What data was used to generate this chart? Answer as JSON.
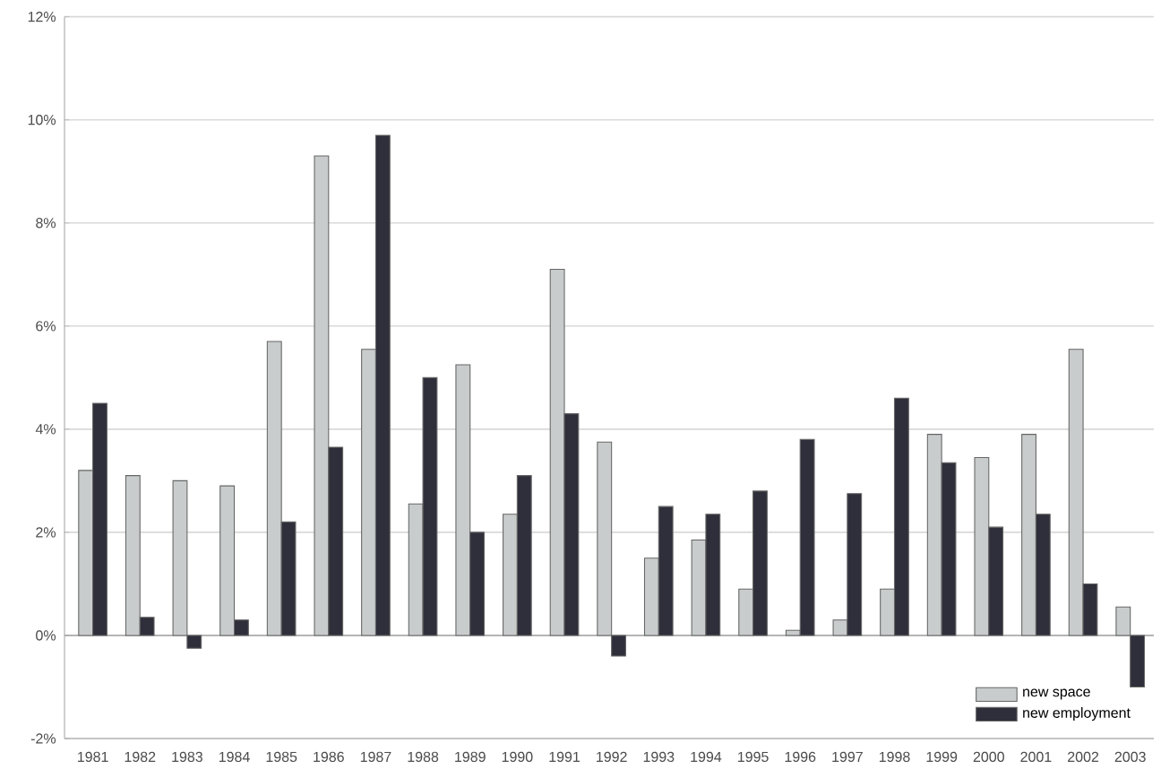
{
  "chart_data": {
    "type": "bar",
    "categories": [
      "1981",
      "1982",
      "1983",
      "1984",
      "1985",
      "1986",
      "1987",
      "1988",
      "1989",
      "1990",
      "1991",
      "1992",
      "1993",
      "1994",
      "1995",
      "1996",
      "1997",
      "1998",
      "1999",
      "2000",
      "2001",
      "2002",
      "2003"
    ],
    "series": [
      {
        "name": "new space",
        "color": "#c8cccc",
        "values": [
          3.2,
          3.1,
          3.0,
          2.9,
          5.7,
          9.3,
          5.55,
          2.55,
          5.25,
          2.35,
          7.1,
          3.75,
          1.5,
          1.85,
          0.9,
          0.1,
          0.3,
          0.9,
          3.9,
          3.45,
          3.9,
          5.55,
          0.55
        ]
      },
      {
        "name": "new employment",
        "color": "#2e2f3a",
        "values": [
          4.5,
          0.35,
          -0.25,
          0.3,
          2.2,
          3.65,
          9.7,
          5.0,
          2.0,
          3.1,
          4.3,
          -0.4,
          2.5,
          2.35,
          2.8,
          3.8,
          2.75,
          4.6,
          3.35,
          2.1,
          2.35,
          1.0,
          -1.0
        ]
      }
    ],
    "ylim": [
      -2,
      12
    ],
    "yticks": [
      {
        "value": -2,
        "label": "-2%"
      },
      {
        "value": 0,
        "label": "0%"
      },
      {
        "value": 2,
        "label": "2%"
      },
      {
        "value": 4,
        "label": "4%"
      },
      {
        "value": 6,
        "label": "6%"
      },
      {
        "value": 8,
        "label": "8%"
      },
      {
        "value": 10,
        "label": "10%"
      },
      {
        "value": 12,
        "label": "12%"
      }
    ],
    "grid": "y",
    "legend": "bottom right"
  }
}
